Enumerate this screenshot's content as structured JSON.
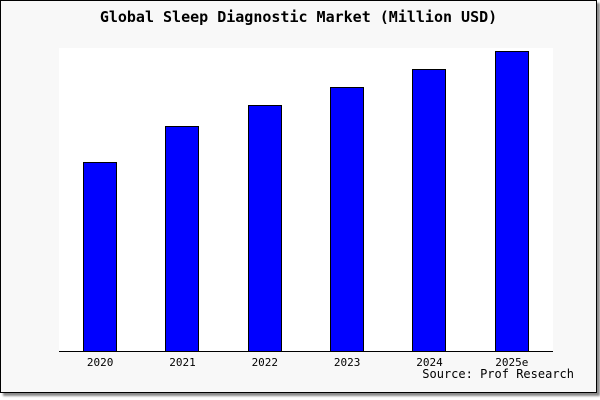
{
  "chart_data": {
    "type": "bar",
    "title": "Global Sleep Diagnostic Market (Million USD)",
    "categories": [
      "2020",
      "2021",
      "2022",
      "2023",
      "2024",
      "2025e"
    ],
    "values": [
      63,
      75,
      82,
      88,
      94,
      100
    ],
    "xlabel": "",
    "ylabel": "",
    "ylim": [
      0,
      100
    ],
    "grid": false,
    "legend": false,
    "bar_color": "#0000ff",
    "bar_border_color": "#000000"
  },
  "source": "Source: Prof Research",
  "colors": {
    "figure_background": "#f8f8f8",
    "plot_background": "#ffffff",
    "axis": "#000000",
    "text": "#000000",
    "figure_border": "#000000"
  }
}
